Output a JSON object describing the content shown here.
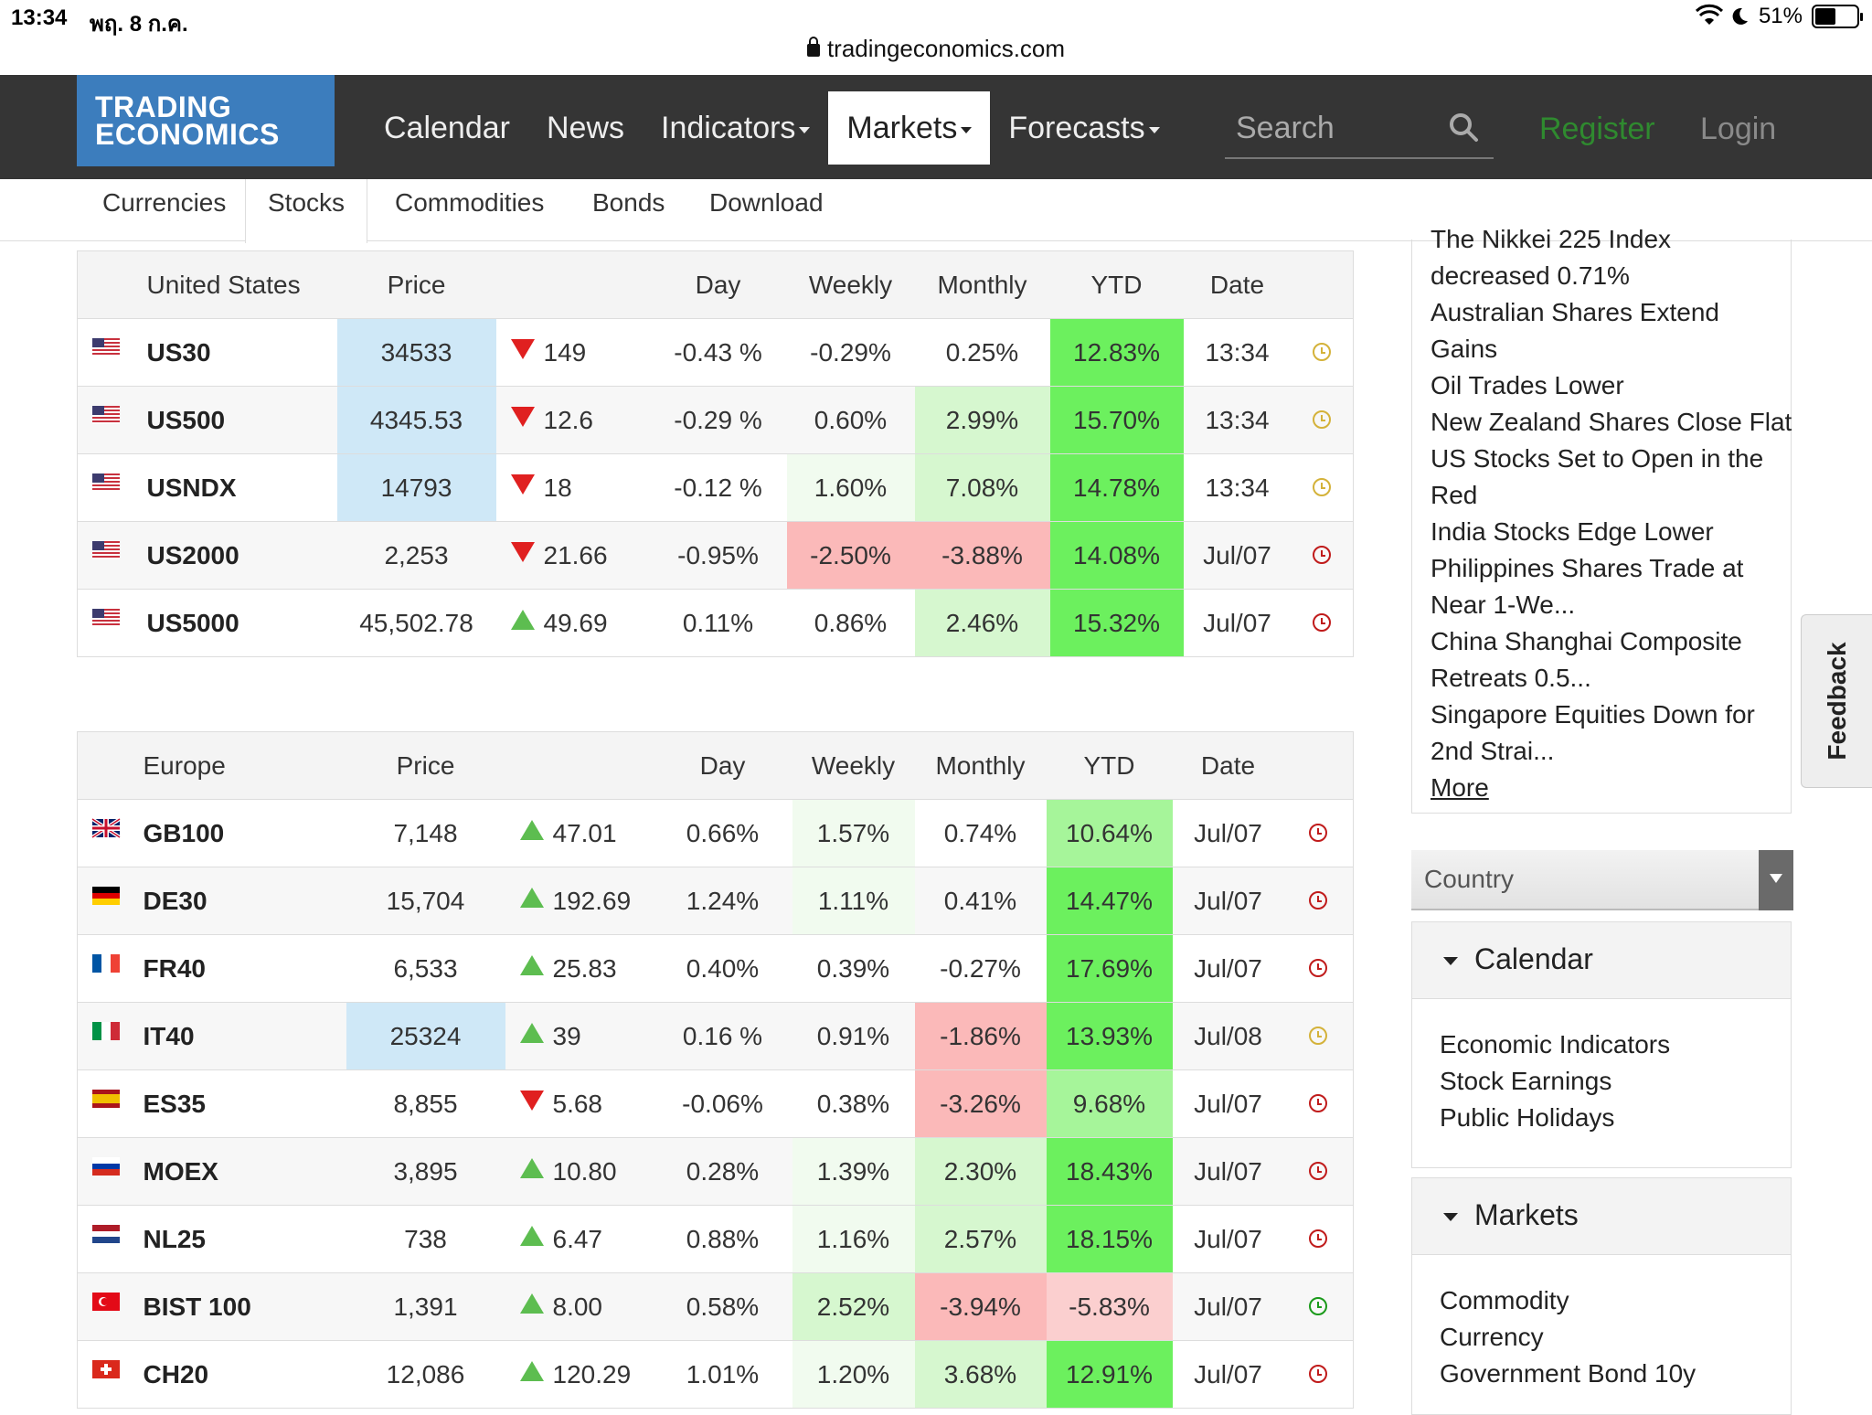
{
  "status": {
    "time": "13:34",
    "date": "พฤ. 8 ก.ค.",
    "battery": "51%",
    "url": "tradingeconomics.com"
  },
  "nav": {
    "logo_line1": "TRADING",
    "logo_line2": "ECONOMICS",
    "items": [
      "Calendar",
      "News",
      "Indicators",
      "Markets",
      "Forecasts"
    ],
    "search_placeholder": "Search",
    "register": "Register",
    "login": "Login"
  },
  "subnav": [
    "Currencies",
    "Stocks",
    "Commodities",
    "Bonds",
    "Download"
  ],
  "us_table": {
    "headers": [
      "United States",
      "Price",
      "",
      "Day",
      "Weekly",
      "Monthly",
      "YTD",
      "Date"
    ],
    "rows": [
      {
        "flag": "us",
        "symbol": "US30",
        "price": "34533",
        "dir": "down",
        "change": "149",
        "day": "-0.43 %",
        "weekly": "-0.29%",
        "monthly": "0.25%",
        "ytd": "12.83%",
        "date": "13:34",
        "status": "live"
      },
      {
        "flag": "us",
        "symbol": "US500",
        "price": "4345.53",
        "dir": "down",
        "change": "12.6",
        "day": "-0.29 %",
        "weekly": "0.60%",
        "monthly": "2.99%",
        "ytd": "15.70%",
        "date": "13:34",
        "status": "live"
      },
      {
        "flag": "us",
        "symbol": "USNDX",
        "price": "14793",
        "dir": "down",
        "change": "18",
        "day": "-0.12 %",
        "weekly": "1.60%",
        "monthly": "7.08%",
        "ytd": "14.78%",
        "date": "13:34",
        "status": "live"
      },
      {
        "flag": "us",
        "symbol": "US2000",
        "price": "2,253",
        "dir": "down",
        "change": "21.66",
        "day": "-0.95%",
        "weekly": "-2.50%",
        "monthly": "-3.88%",
        "ytd": "14.08%",
        "date": "Jul/07",
        "status": "closed"
      },
      {
        "flag": "us",
        "symbol": "US5000",
        "price": "45,502.78",
        "dir": "up",
        "change": "49.69",
        "day": "0.11%",
        "weekly": "0.86%",
        "monthly": "2.46%",
        "ytd": "15.32%",
        "date": "Jul/07",
        "status": "closed"
      }
    ]
  },
  "eu_table": {
    "headers": [
      "Europe",
      "Price",
      "",
      "Day",
      "Weekly",
      "Monthly",
      "YTD",
      "Date"
    ],
    "rows": [
      {
        "flag": "gb",
        "symbol": "GB100",
        "price": "7,148",
        "dir": "up",
        "change": "47.01",
        "day": "0.66%",
        "weekly": "1.57%",
        "monthly": "0.74%",
        "ytd": "10.64%",
        "date": "Jul/07",
        "status": "closed"
      },
      {
        "flag": "de",
        "symbol": "DE30",
        "price": "15,704",
        "dir": "up",
        "change": "192.69",
        "day": "1.24%",
        "weekly": "1.11%",
        "monthly": "0.41%",
        "ytd": "14.47%",
        "date": "Jul/07",
        "status": "closed"
      },
      {
        "flag": "fr",
        "symbol": "FR40",
        "price": "6,533",
        "dir": "up",
        "change": "25.83",
        "day": "0.40%",
        "weekly": "0.39%",
        "monthly": "-0.27%",
        "ytd": "17.69%",
        "date": "Jul/07",
        "status": "closed"
      },
      {
        "flag": "it",
        "symbol": "IT40",
        "price": "25324",
        "dir": "up",
        "change": "39",
        "day": "0.16 %",
        "weekly": "0.91%",
        "monthly": "-1.86%",
        "ytd": "13.93%",
        "date": "Jul/08",
        "status": "live"
      },
      {
        "flag": "es",
        "symbol": "ES35",
        "price": "8,855",
        "dir": "down",
        "change": "5.68",
        "day": "-0.06%",
        "weekly": "0.38%",
        "monthly": "-3.26%",
        "ytd": "9.68%",
        "date": "Jul/07",
        "status": "closed"
      },
      {
        "flag": "ru",
        "symbol": "MOEX",
        "price": "3,895",
        "dir": "up",
        "change": "10.80",
        "day": "0.28%",
        "weekly": "1.39%",
        "monthly": "2.30%",
        "ytd": "18.43%",
        "date": "Jul/07",
        "status": "closed"
      },
      {
        "flag": "nl",
        "symbol": "NL25",
        "price": "738",
        "dir": "up",
        "change": "6.47",
        "day": "0.88%",
        "weekly": "1.16%",
        "monthly": "2.57%",
        "ytd": "18.15%",
        "date": "Jul/07",
        "status": "closed"
      },
      {
        "flag": "tr",
        "symbol": "BIST 100",
        "price": "1,391",
        "dir": "up",
        "change": "8.00",
        "day": "0.58%",
        "weekly": "2.52%",
        "monthly": "-3.94%",
        "ytd": "-5.83%",
        "date": "Jul/07",
        "status": "open"
      },
      {
        "flag": "ch",
        "symbol": "CH20",
        "price": "12,086",
        "dir": "up",
        "change": "120.29",
        "day": "1.01%",
        "weekly": "1.20%",
        "monthly": "3.68%",
        "ytd": "12.91%",
        "date": "Jul/07",
        "status": "closed"
      }
    ]
  },
  "news": [
    "The Nikkei 225 Index",
    "decreased 0.71%",
    "Australian Shares Extend",
    "Gains",
    "Oil Trades Lower",
    "New Zealand Shares Close Flat",
    "US Stocks Set to Open in the",
    "Red",
    "India Stocks Edge Lower",
    "Philippines Shares Trade at",
    "Near 1-We...",
    "China Shanghai Composite",
    "Retreats 0.5...",
    "Singapore Equities Down for",
    "2nd Strai..."
  ],
  "news_more": "More",
  "country_label": "Country",
  "calendar_panel": {
    "title": "Calendar",
    "links": [
      "Economic Indicators",
      "Stock Earnings",
      "Public Holidays"
    ]
  },
  "markets_panel": {
    "title": "Markets",
    "links": [
      "Commodity",
      "Currency",
      "Government Bond 10y"
    ]
  },
  "feedback": "Feedback",
  "colors": {
    "brand": "#3c7dbd",
    "navbar": "#353535",
    "up": "#5dbd50",
    "down": "#e02020",
    "register": "#2f8a2f"
  }
}
